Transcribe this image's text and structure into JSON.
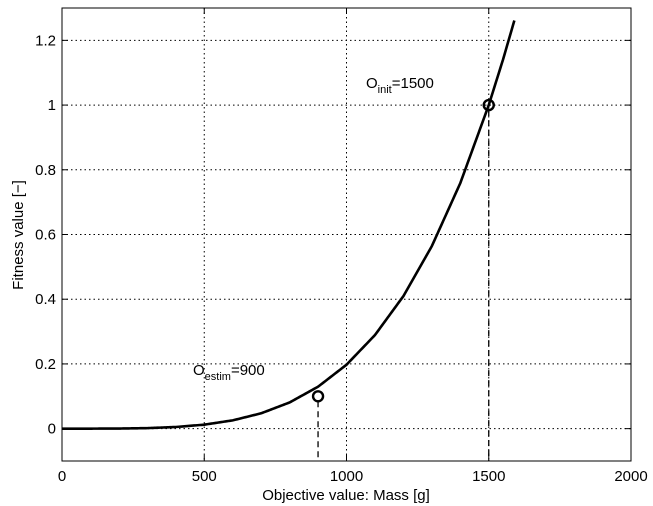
{
  "chart_data": {
    "type": "line",
    "xlabel": "Objective value: Mass [g]",
    "ylabel": "Fitness value [−]",
    "xlim": [
      0,
      2000
    ],
    "ylim": [
      -0.1,
      1.3
    ],
    "x_ticks": [
      0,
      500,
      1000,
      1500,
      2000
    ],
    "x_tick_labels": [
      "0",
      "500",
      "1000",
      "1500",
      "2000"
    ],
    "y_ticks": [
      0,
      0.2,
      0.4,
      0.6,
      0.8,
      1,
      1.2
    ],
    "y_tick_labels": [
      "0",
      "0.2",
      "0.4",
      "0.6",
      "0.8",
      "1",
      "1.2"
    ],
    "grid": true,
    "series": [
      {
        "x": [
          0,
          100,
          200,
          300,
          400,
          500,
          600,
          700,
          800,
          900,
          1000,
          1100,
          1200,
          1300,
          1400,
          1500,
          1550,
          1590
        ],
        "values": [
          0,
          0.0,
          0.0003,
          0.0016,
          0.0051,
          0.0123,
          0.0256,
          0.0474,
          0.0809,
          0.1296,
          0.1975,
          0.2892,
          0.4096,
          0.5642,
          0.7588,
          1.0,
          1.1401,
          1.2613
        ]
      }
    ],
    "points": [
      {
        "x": 900,
        "y": 0.1,
        "label_main": "O",
        "label_sub": "estim",
        "label_rest": "=900"
      },
      {
        "x": 1500,
        "y": 1.0,
        "label_main": "O",
        "label_sub": "init",
        "label_rest": "=1500"
      }
    ]
  }
}
